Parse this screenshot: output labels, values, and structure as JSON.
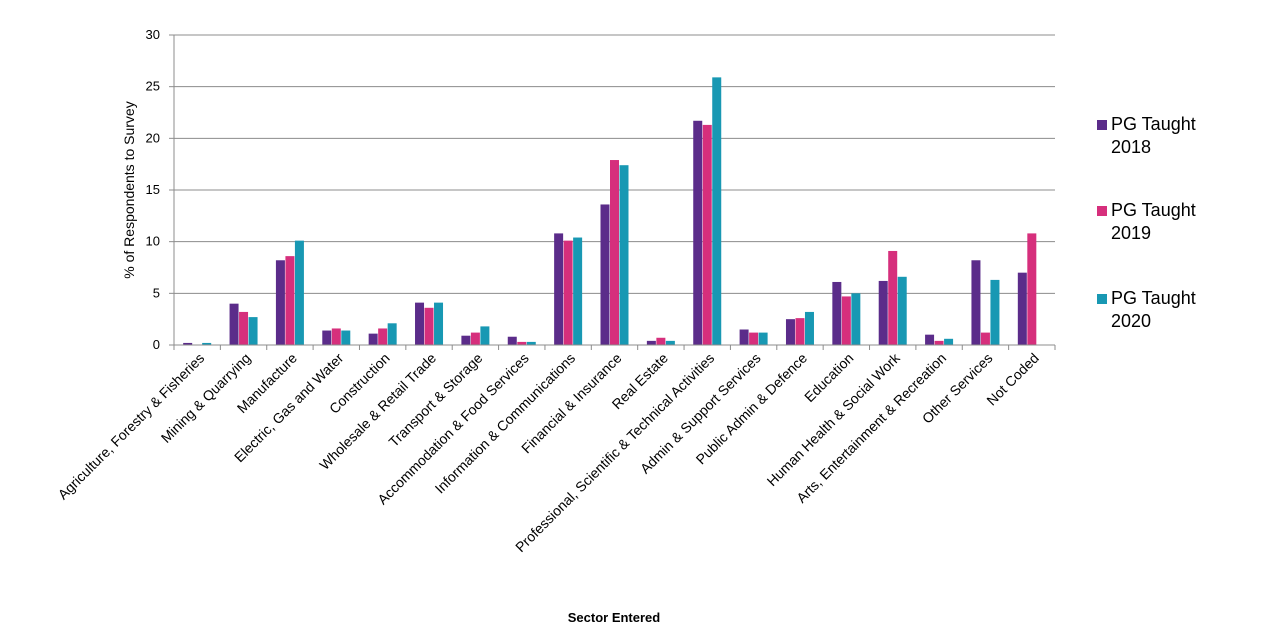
{
  "chart_data": {
    "type": "bar",
    "title": "",
    "xlabel": "Sector Entered",
    "ylabel": "% of Respondents to Survey",
    "ylim": [
      0,
      30
    ],
    "yticks": [
      0,
      5,
      10,
      15,
      20,
      25,
      30
    ],
    "grid": true,
    "legend_position": "right",
    "categories": [
      "Agriculture, Forestry & Fisheries",
      "Mining & Quarrying",
      "Manufacture",
      "Electric, Gas and Water",
      "Construction",
      "Wholesale & Retail Trade",
      "Transport & Storage",
      "Accommodation & Food Services",
      "Information & Communications",
      "Financial & Insurance",
      "Real Estate",
      "Professional, Scientific & Technical Activities",
      "Admin & Support Services",
      "Public Admin & Defence",
      "Education",
      "Human Health & Social Work",
      "Arts, Entertainment & Recreation",
      "Other Services",
      "Not Coded"
    ],
    "series": [
      {
        "name": "PG Taught 2018",
        "legend_lines": [
          "PG Taught",
          "2018"
        ],
        "color": "#5b2c8a",
        "values": [
          0.2,
          4.0,
          8.2,
          1.4,
          1.1,
          4.1,
          0.9,
          0.8,
          10.8,
          13.6,
          0.4,
          21.7,
          1.5,
          2.5,
          6.1,
          6.2,
          1.0,
          8.2,
          7.0
        ]
      },
      {
        "name": "PG Taught 2019",
        "legend_lines": [
          "PG Taught",
          "2019"
        ],
        "color": "#d62f7c",
        "values": [
          0.0,
          3.2,
          8.6,
          1.6,
          1.6,
          3.6,
          1.2,
          0.3,
          10.1,
          17.9,
          0.7,
          21.3,
          1.2,
          2.6,
          4.7,
          9.1,
          0.4,
          1.2,
          10.8
        ]
      },
      {
        "name": "PG Taught 2020",
        "legend_lines": [
          "PG Taught",
          "2020"
        ],
        "color": "#1898b3",
        "values": [
          0.2,
          2.7,
          10.1,
          1.4,
          2.1,
          4.1,
          1.8,
          0.3,
          10.4,
          17.4,
          0.4,
          25.9,
          1.2,
          3.2,
          5.0,
          6.6,
          0.6,
          6.3,
          null
        ]
      }
    ]
  }
}
